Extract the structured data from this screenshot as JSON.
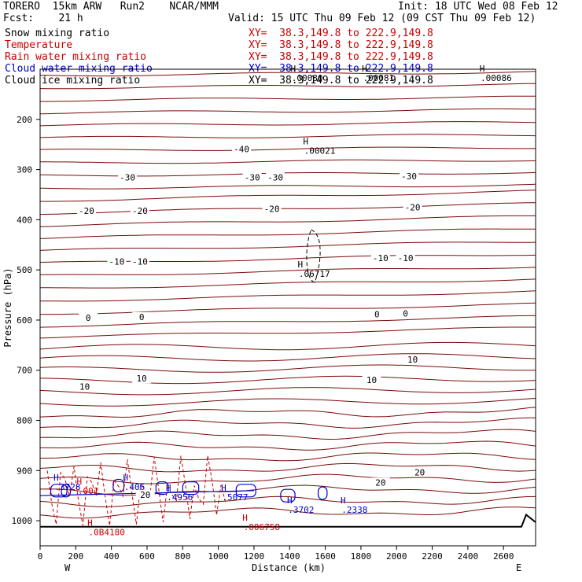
{
  "header": {
    "model": "TORERO  15km ARW   Run2    NCAR/MMM",
    "init": "Init: 18 UTC Wed 08 Feb 12",
    "fcst": "Fcst:    21 h",
    "valid": "Valid: 15 UTC Thu 09 Feb 12 (09 CST Thu 09 Feb 12)"
  },
  "legend": [
    {
      "name": "Snow mixing ratio",
      "xy": "XY=  38.3,149.8 to 222.9,149.8",
      "color": "#000000"
    },
    {
      "name": "Temperature",
      "xy": "XY=  38.3,149.8 to 222.9,149.8",
      "color": "#cc0000"
    },
    {
      "name": "Rain water mixing ratio",
      "xy": "XY=  38.3,149.8 to 222.9,149.8",
      "color": "#cc0000"
    },
    {
      "name": "Cloud water mixing ratio",
      "xy": "XY=  38.3,149.8 to 222.9,149.8",
      "color": "#0000cc"
    },
    {
      "name": "Cloud ice mixing ratio",
      "xy": "XY=  38.3,149.8 to 222.9,149.8",
      "color": "#000000"
    }
  ],
  "chart_data": {
    "type": "contour cross-section",
    "xlabel": "Distance (km)",
    "ylabel": "Pressure (hPa)",
    "xlim": [
      0,
      2780
    ],
    "ylim": [
      1050,
      100
    ],
    "x_ticks": [
      0,
      200,
      400,
      600,
      800,
      1000,
      1200,
      1400,
      1600,
      1800,
      2000,
      2200,
      2400,
      2600
    ],
    "y_ticks": [
      200,
      300,
      400,
      500,
      600,
      700,
      800,
      900,
      1000
    ],
    "side_labels": {
      "west": "W",
      "east": "E"
    },
    "isotherm_labels": [
      {
        "text": "-40",
        "x": 1130,
        "p": 261
      },
      {
        "text": "-30",
        "x": 490,
        "p": 317
      },
      {
        "text": "-30",
        "x": 1190,
        "p": 317
      },
      {
        "text": "-30",
        "x": 1320,
        "p": 317
      },
      {
        "text": "-30",
        "x": 2070,
        "p": 315
      },
      {
        "text": "-20",
        "x": 260,
        "p": 384
      },
      {
        "text": "-20",
        "x": 560,
        "p": 384
      },
      {
        "text": "-20",
        "x": 1300,
        "p": 380
      },
      {
        "text": "-20",
        "x": 2090,
        "p": 377
      },
      {
        "text": "-10",
        "x": 430,
        "p": 485
      },
      {
        "text": "-10",
        "x": 560,
        "p": 485
      },
      {
        "text": "-10",
        "x": 1910,
        "p": 478
      },
      {
        "text": "-10",
        "x": 2050,
        "p": 478
      },
      {
        "text": "0",
        "x": 270,
        "p": 597
      },
      {
        "text": "0",
        "x": 570,
        "p": 595
      },
      {
        "text": "0",
        "x": 1890,
        "p": 590
      },
      {
        "text": "0",
        "x": 2050,
        "p": 588
      },
      {
        "text": "10",
        "x": 250,
        "p": 734
      },
      {
        "text": "10",
        "x": 570,
        "p": 718
      },
      {
        "text": "10",
        "x": 1860,
        "p": 721
      },
      {
        "text": "10",
        "x": 2090,
        "p": 680
      },
      {
        "text": "20",
        "x": 590,
        "p": 950
      },
      {
        "text": "20",
        "x": 1910,
        "p": 925
      },
      {
        "text": "20",
        "x": 2130,
        "p": 905
      }
    ],
    "extrema": [
      {
        "mark": "H",
        "value": ".00021",
        "x": 1490,
        "p": 250,
        "color": "#000000"
      },
      {
        "mark": "H",
        "value": ".06717",
        "x": 1460,
        "p": 495,
        "color": "#000000"
      },
      {
        "mark": "H",
        "value": ".00080",
        "x": 1420,
        "p": 105,
        "color": "#000000"
      },
      {
        "mark": "H",
        "value": ".00081",
        "x": 1820,
        "p": 105,
        "color": "#000000"
      },
      {
        "mark": "H",
        "value": ".00086",
        "x": 2480,
        "p": 105,
        "color": "#000000"
      },
      {
        "mark": "H",
        "value": ".3728",
        "x": 90,
        "p": 920,
        "color": "#0000cc"
      },
      {
        "mark": "H",
        "value": ".406",
        "x": 480,
        "p": 920,
        "color": "#0000cc"
      },
      {
        "mark": "H",
        "value": ".4956",
        "x": 720,
        "p": 940,
        "color": "#0000cc"
      },
      {
        "mark": "H",
        "value": ".5077",
        "x": 1030,
        "p": 940,
        "color": "#0000cc"
      },
      {
        "mark": "H",
        "value": ".3702",
        "x": 1400,
        "p": 965,
        "color": "#0000cc"
      },
      {
        "mark": "H",
        "value": ".2338",
        "x": 1700,
        "p": 965,
        "color": "#0000cc"
      },
      {
        "mark": "H",
        "value": ".001",
        "x": 220,
        "p": 928,
        "color": "#cc0000"
      },
      {
        "mark": "H",
        "value": ".0B4180",
        "x": 280,
        "p": 1010,
        "color": "#cc0000"
      },
      {
        "mark": "H",
        "value": ".006758",
        "x": 1150,
        "p": 1000,
        "color": "#cc0000"
      }
    ]
  }
}
